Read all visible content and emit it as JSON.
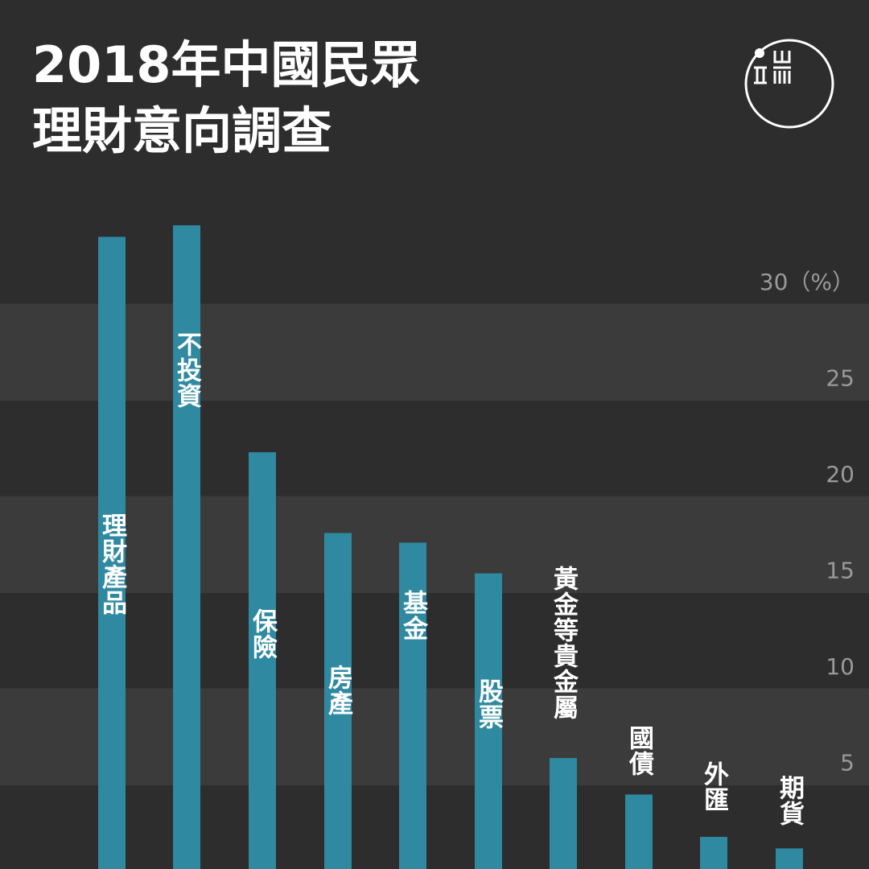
{
  "chart_data": {
    "type": "bar",
    "title": [
      "2018年中國民眾",
      "理財意向調查"
    ],
    "categories": [
      "理財產品",
      "不投資",
      "保險",
      "房產",
      "基金",
      "股票",
      "黃金等貴金屬",
      "國債",
      "外匯",
      "期貨"
    ],
    "values": [
      33.5,
      34.1,
      22.3,
      18.1,
      17.6,
      16.0,
      6.4,
      4.5,
      2.3,
      1.7
    ],
    "color": "#2e89a1",
    "ylim": [
      0,
      35
    ],
    "yticks": [
      5,
      10,
      15,
      20,
      25,
      {
        "value": 30,
        "label": "30（%）"
      }
    ],
    "grid": true
  }
}
